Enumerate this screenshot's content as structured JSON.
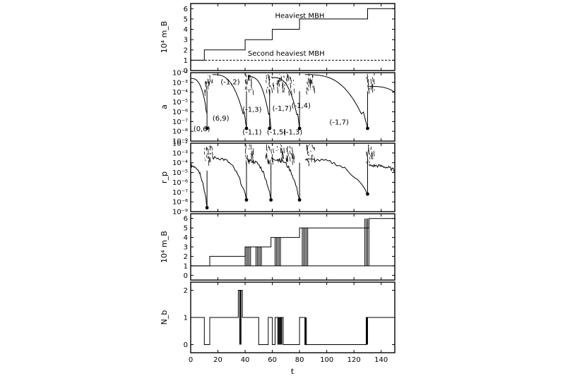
{
  "chart_data": {
    "type": "line",
    "x": {
      "label": "t",
      "range": [
        0,
        150
      ],
      "ticks": [
        "0",
        "20",
        "40",
        "60",
        "80",
        "100",
        "120",
        "140"
      ]
    },
    "panels": [
      {
        "ylabel": "10⁴ m_B",
        "yrange": [
          0,
          6.5
        ],
        "yticks": [
          "0",
          "1",
          "2",
          "3",
          "4",
          "5",
          "6"
        ],
        "series": [
          {
            "name": "Heaviest MBH",
            "style": "solid",
            "points": [
              [
                0,
                1
              ],
              [
                10,
                1
              ],
              [
                10,
                2
              ],
              [
                40,
                2
              ],
              [
                40,
                3
              ],
              [
                60,
                3
              ],
              [
                60,
                4
              ],
              [
                80,
                4
              ],
              [
                80,
                5
              ],
              [
                130,
                5
              ],
              [
                130,
                6
              ],
              [
                150,
                6
              ]
            ]
          },
          {
            "name": "Second heaviest MBH",
            "style": "dashed",
            "points": [
              [
                0,
                1
              ],
              [
                150,
                1
              ]
            ]
          }
        ]
      },
      {
        "ylabel": "a",
        "log": true,
        "yrange": [
          -9,
          -2
        ],
        "yticks": [
          "10⁻²",
          "10⁻³",
          "10⁻⁴",
          "10⁻⁵",
          "10⁻⁶",
          "10⁻⁷",
          "10⁻⁸",
          "10⁻⁹"
        ],
        "merger_dots": [
          [
            12,
            -7.7
          ],
          [
            41,
            -7.7
          ],
          [
            58,
            -7.7
          ],
          [
            80,
            -7.7
          ],
          [
            130,
            -7.7
          ]
        ],
        "annotations": [
          "(0,6)",
          "(6,9)",
          "(-1,2)",
          "(-1,3)",
          "(-1,1)",
          "(-1,7)",
          "(-1,5)",
          "(-1,4)",
          "(-1,3)",
          "(-1,7)"
        ]
      },
      {
        "ylabel": "r_p",
        "log": true,
        "yrange": [
          -9,
          -2
        ],
        "yticks": [
          "10⁻²",
          "10⁻³",
          "10⁻⁴",
          "10⁻⁵",
          "10⁻⁶",
          "10⁻⁷",
          "10⁻⁸",
          "10⁻⁹"
        ],
        "merger_dots": [
          [
            12,
            -8.6
          ],
          [
            41,
            -7.8
          ],
          [
            59,
            -7.8
          ],
          [
            80,
            -7.8
          ],
          [
            130,
            -7.2
          ]
        ]
      },
      {
        "ylabel": "10⁴ m_B",
        "yrange": [
          -0.5,
          6.5
        ],
        "yticks": [
          "0",
          "1",
          "2",
          "3",
          "4",
          "5",
          "6"
        ]
      },
      {
        "ylabel": "N_b",
        "yrange": [
          -0.3,
          2.3
        ],
        "yticks": [
          "0",
          "1",
          "2"
        ]
      }
    ]
  },
  "text": {
    "heaviest": "Heaviest MBH",
    "second": "Second heaviest MBH",
    "xlabel": "t"
  }
}
